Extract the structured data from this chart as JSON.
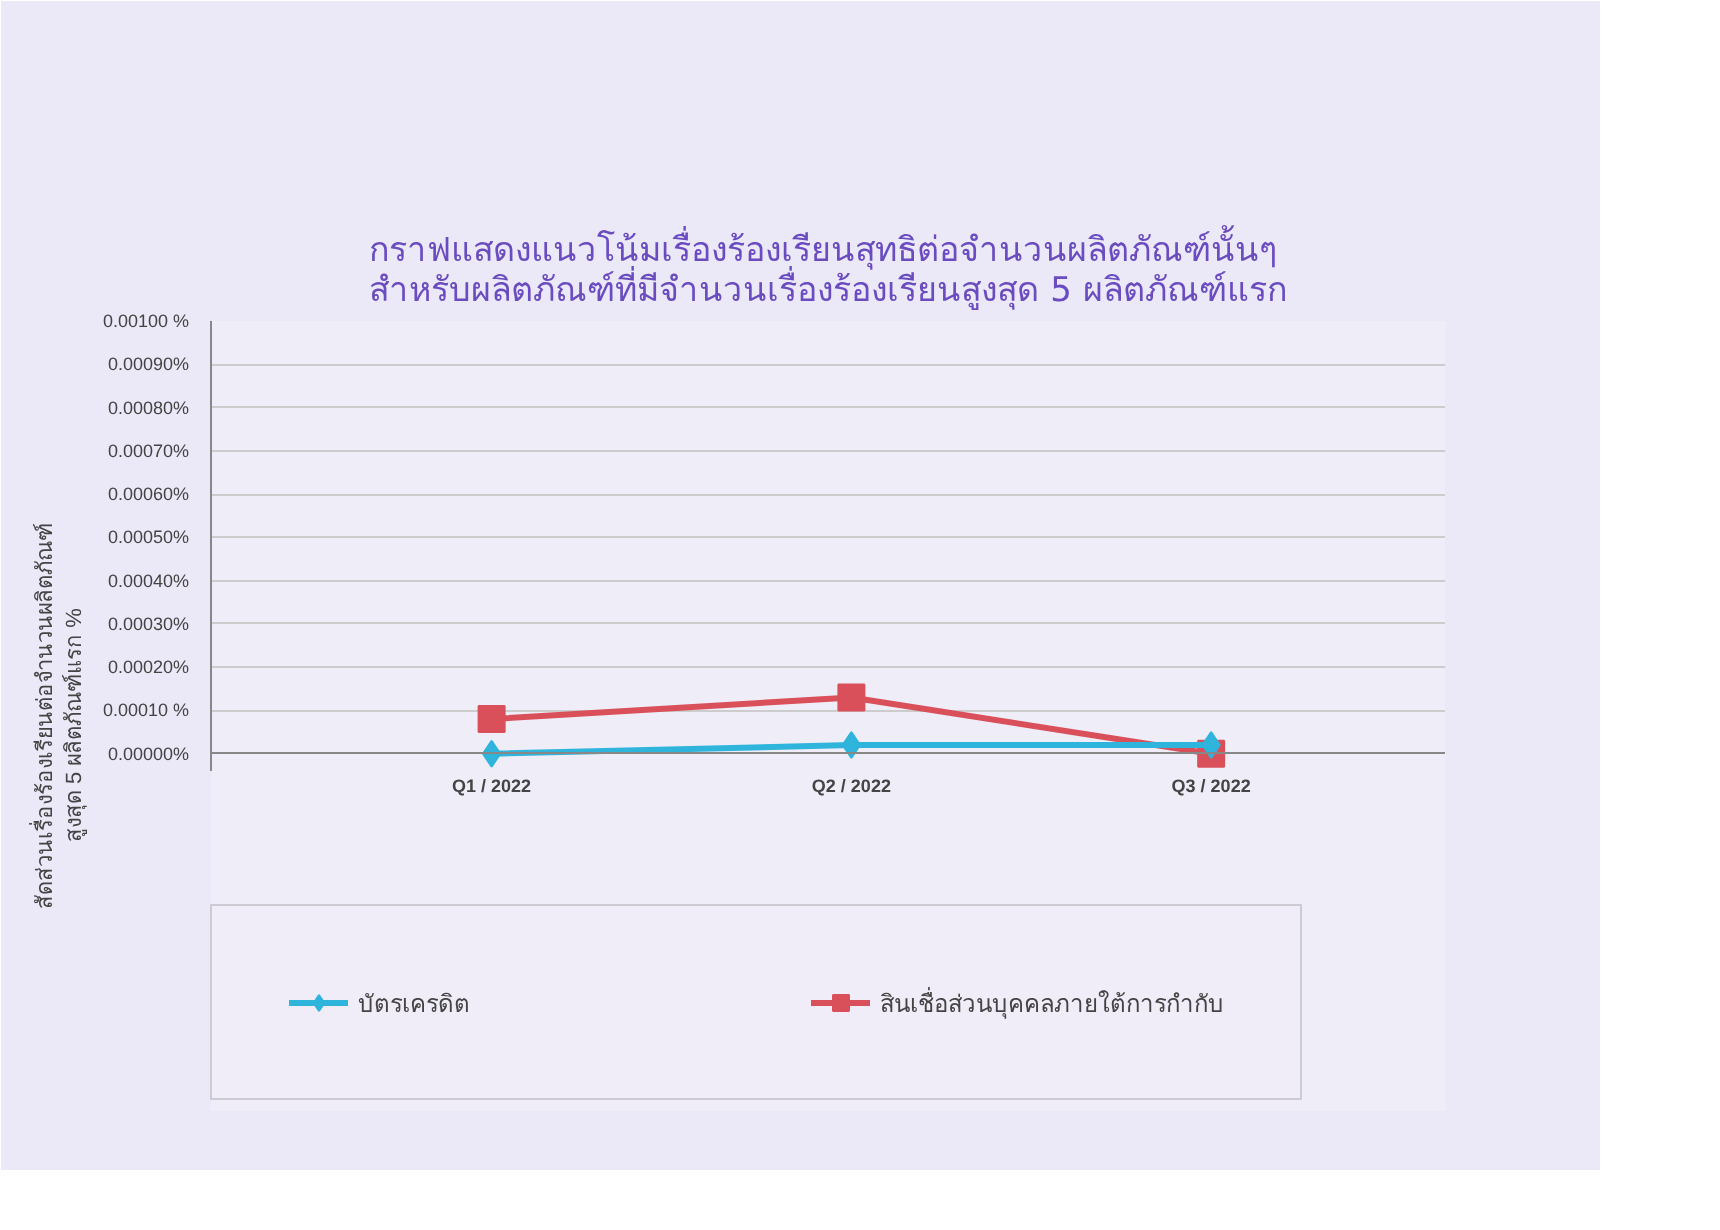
{
  "chart_data": {
    "type": "line",
    "title": "กราฟแสดงแนวโน้มเรื่องร้องเรียนสุทธิต่อจำนวนผลิตภัณฑ์นั้นๆ\nสำหรับผลิตภัณฑ์ที่มีจำนวนเรื่องร้องเรียนสูงสุด 5 ผลิตภัณฑ์แรก",
    "ylabel": "สัดส่วนเรื่องร้องเรียนต่อจำนวนผลิตภัณฑ์\nสูงสุด 5 ผลิตภัณฑ์แรก    %",
    "categories": [
      "Q1 / 2022",
      "Q2 / 2022",
      "Q3 / 2022"
    ],
    "series": [
      {
        "name": "บัตรเครดิต",
        "color": "#2fb4dc",
        "marker": "diamond",
        "values": [
          0.0,
          2e-05,
          2e-05
        ]
      },
      {
        "name": "สินเชื่อส่วนบุคคลภายใต้การกำกับ",
        "color": "#d9505a",
        "marker": "square",
        "values": [
          8e-05,
          0.00013,
          0.0
        ]
      }
    ],
    "ylim": [
      0,
      0.001
    ],
    "yticks": [
      {
        "value": 0.001,
        "label": "0.00100 %"
      },
      {
        "value": 0.0009,
        "label": "0.00090%"
      },
      {
        "value": 0.0008,
        "label": "0.00080%"
      },
      {
        "value": 0.0007,
        "label": "0.00070%"
      },
      {
        "value": 0.0006,
        "label": "0.00060%"
      },
      {
        "value": 0.0005,
        "label": "0.00050%"
      },
      {
        "value": 0.0004,
        "label": "0.00040%"
      },
      {
        "value": 0.0003,
        "label": "0.00030%"
      },
      {
        "value": 0.0002,
        "label": "0.00020%"
      },
      {
        "value": 0.0001,
        "label": "0.00010 %"
      },
      {
        "value": 0,
        "label": "0.00000%"
      }
    ],
    "grid": "y",
    "legend": "bottom",
    "line_style": "solid"
  }
}
